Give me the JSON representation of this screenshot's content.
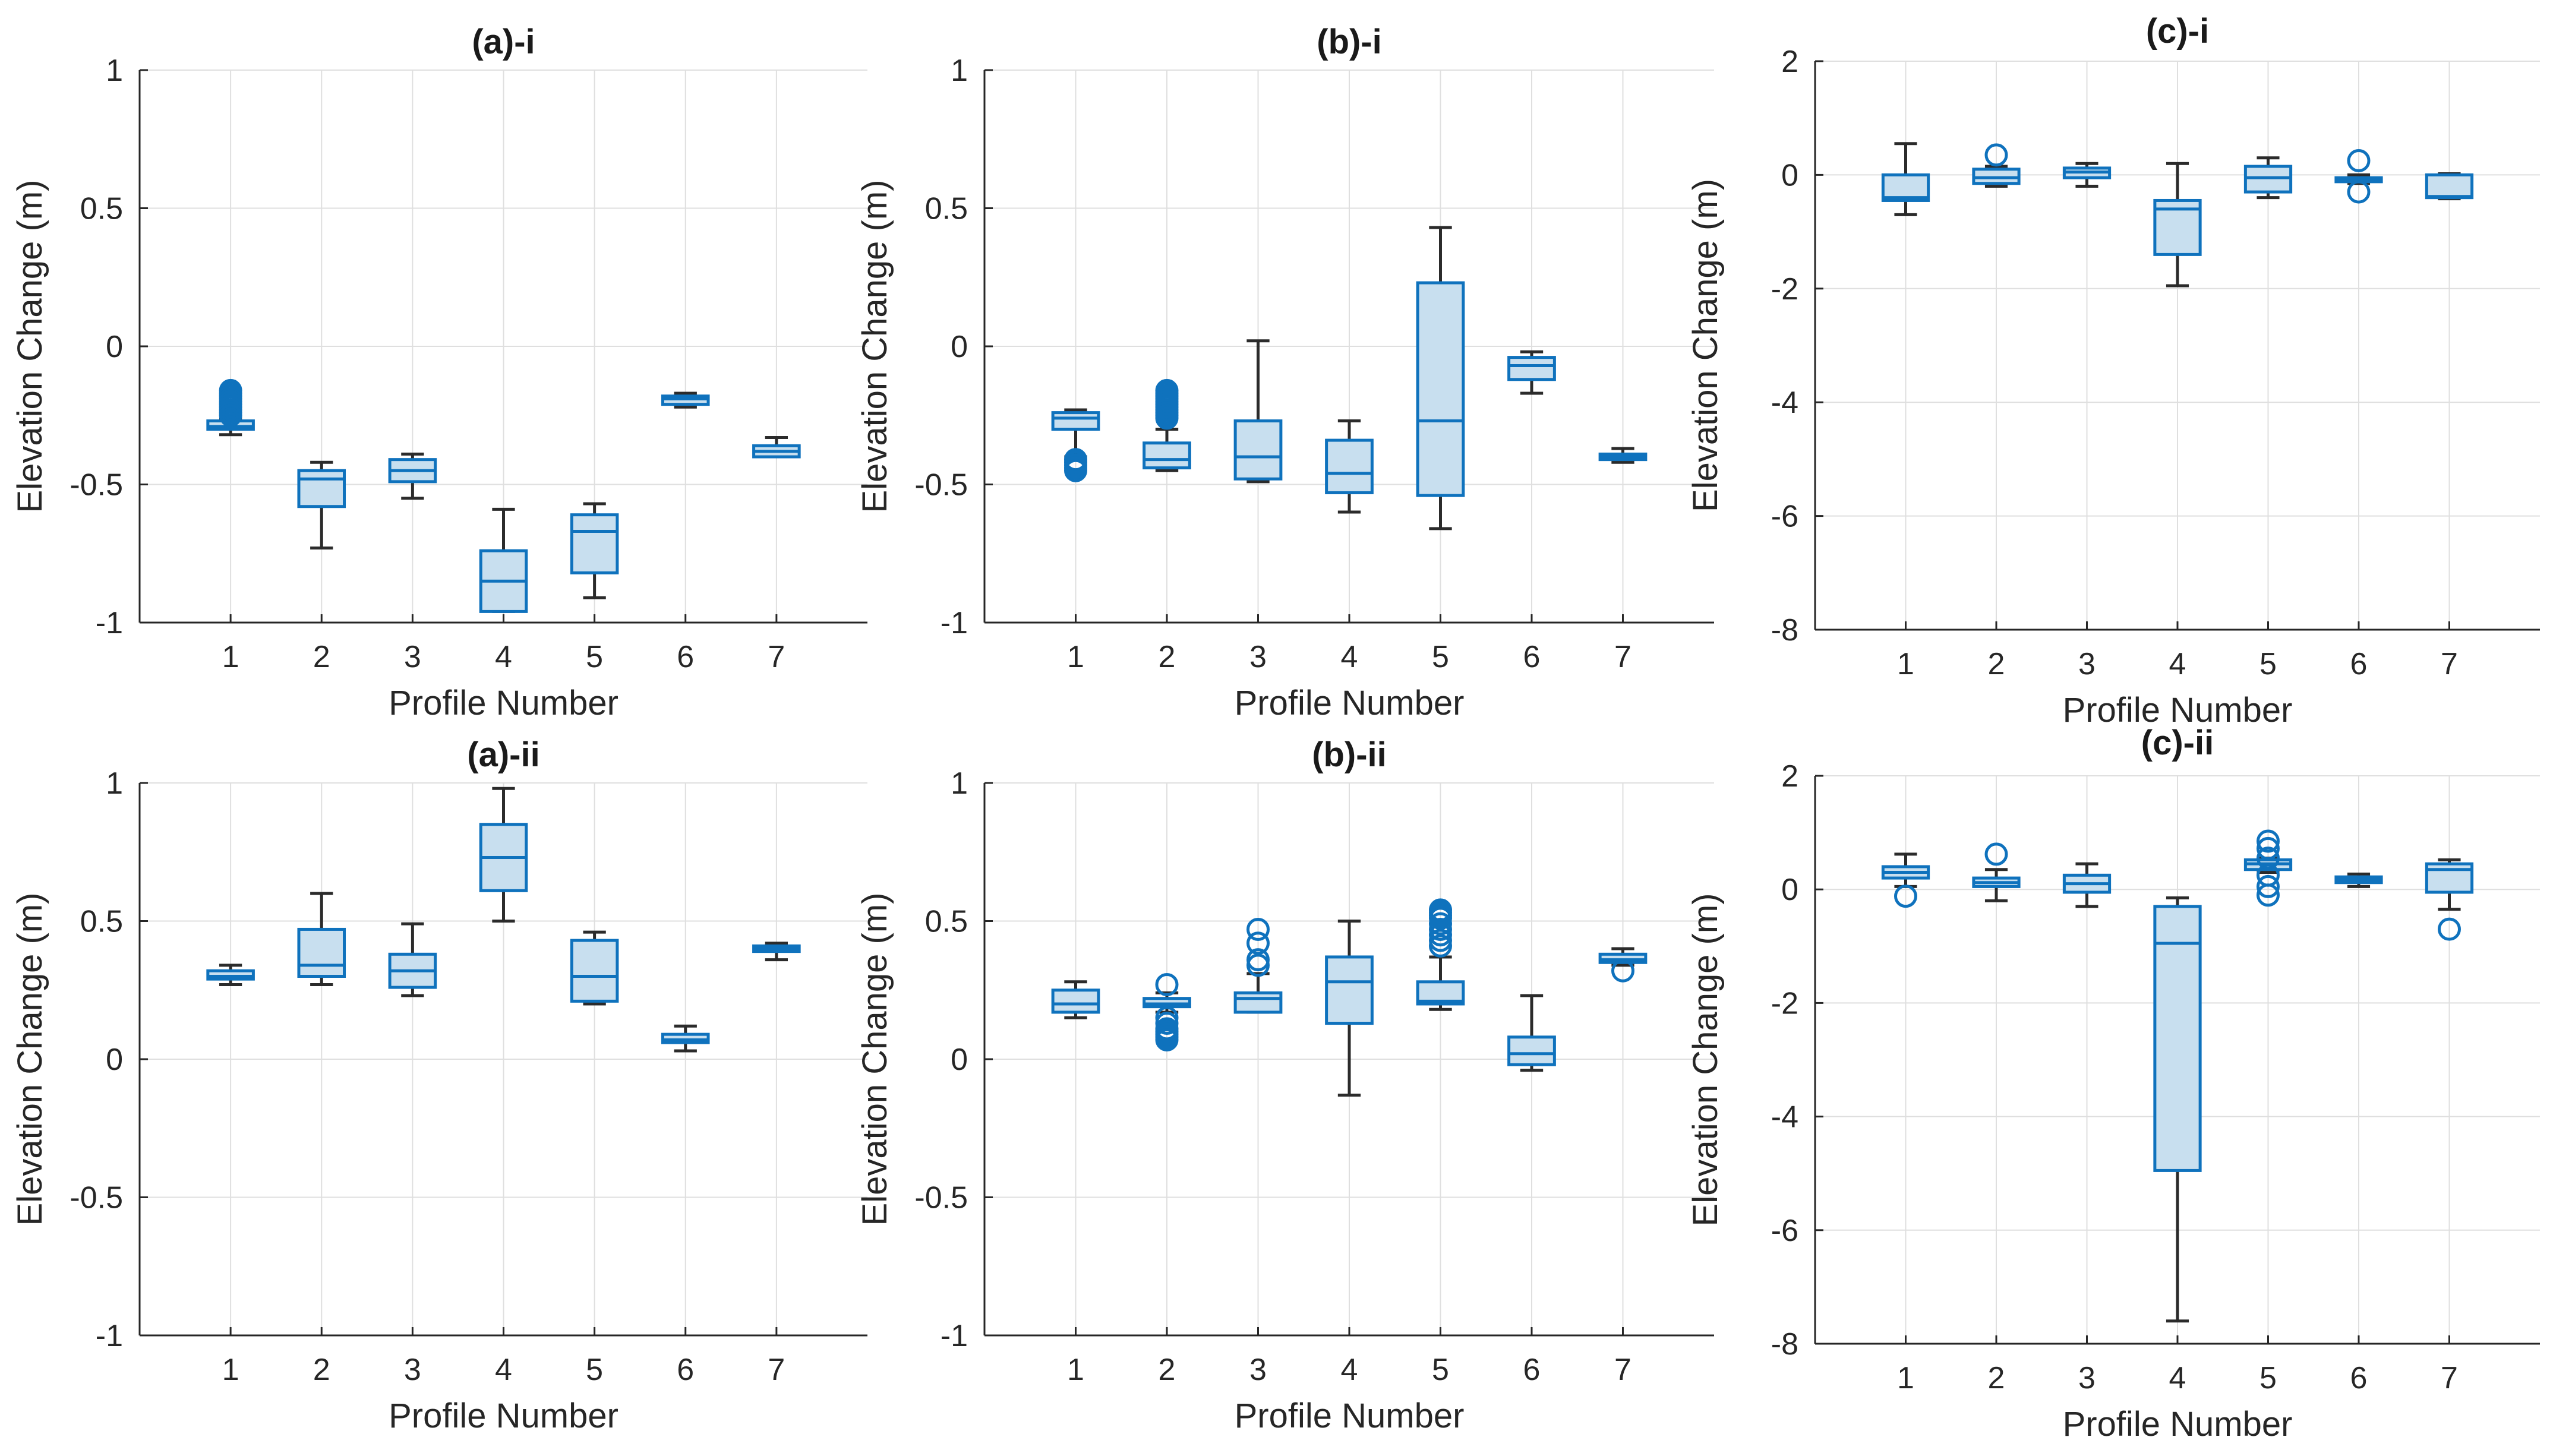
{
  "colors": {
    "box_fill": "#c8dfef",
    "box_edge": "#0f72bd",
    "whisker": "#2b2b2b",
    "grid": "#dfdfdf"
  },
  "chart_data": [
    {
      "type": "box",
      "title": "(a)-i",
      "xlabel": "Profile Number",
      "ylabel": "Elevation Change (m)",
      "ylim": [
        -1,
        1
      ],
      "yticks": [
        -1,
        -0.5,
        0,
        0.5,
        1
      ],
      "ytick_labels": [
        "-1",
        "-0.5",
        "0",
        "0.5",
        "1"
      ],
      "categories": [
        "1",
        "2",
        "3",
        "4",
        "5",
        "6",
        "7"
      ],
      "grid": true,
      "boxes": [
        {
          "category": "1",
          "whisker_low": -0.32,
          "q1": -0.3,
          "median": -0.29,
          "q3": -0.27,
          "whisker_high": -0.26,
          "outliers": [
            -0.16,
            -0.17,
            -0.18,
            -0.19,
            -0.2,
            -0.21,
            -0.22,
            -0.23,
            -0.24,
            -0.25
          ]
        },
        {
          "category": "2",
          "whisker_low": -0.73,
          "q1": -0.58,
          "median": -0.48,
          "q3": -0.45,
          "whisker_high": -0.42,
          "outliers": []
        },
        {
          "category": "3",
          "whisker_low": -0.55,
          "q1": -0.49,
          "median": -0.45,
          "q3": -0.41,
          "whisker_high": -0.39,
          "outliers": []
        },
        {
          "category": "4",
          "whisker_low": -0.96,
          "q1": -0.96,
          "median": -0.85,
          "q3": -0.74,
          "whisker_high": -0.59,
          "outliers": []
        },
        {
          "category": "5",
          "whisker_low": -0.91,
          "q1": -0.82,
          "median": -0.67,
          "q3": -0.61,
          "whisker_high": -0.57,
          "outliers": []
        },
        {
          "category": "6",
          "whisker_low": -0.22,
          "q1": -0.21,
          "median": -0.19,
          "q3": -0.18,
          "whisker_high": -0.17,
          "outliers": []
        },
        {
          "category": "7",
          "whisker_low": -0.4,
          "q1": -0.4,
          "median": -0.38,
          "q3": -0.36,
          "whisker_high": -0.33,
          "outliers": []
        }
      ]
    },
    {
      "type": "box",
      "title": "(b)-i",
      "xlabel": "Profile Number",
      "ylabel": "Elevation Change (m)",
      "ylim": [
        -1,
        1
      ],
      "yticks": [
        -1,
        -0.5,
        0,
        0.5,
        1
      ],
      "ytick_labels": [
        "-1",
        "-0.5",
        "0",
        "0.5",
        "1"
      ],
      "categories": [
        "1",
        "2",
        "3",
        "4",
        "5",
        "6",
        "7"
      ],
      "grid": true,
      "boxes": [
        {
          "category": "1",
          "whisker_low": -0.4,
          "q1": -0.3,
          "median": -0.26,
          "q3": -0.24,
          "whisker_high": -0.23,
          "outliers": [
            -0.41,
            -0.42,
            -0.43,
            -0.44,
            -0.45
          ]
        },
        {
          "category": "2",
          "whisker_low": -0.45,
          "q1": -0.44,
          "median": -0.41,
          "q3": -0.35,
          "whisker_high": -0.3,
          "outliers": [
            -0.16,
            -0.17,
            -0.18,
            -0.19,
            -0.2,
            -0.21,
            -0.22,
            -0.23,
            -0.24,
            -0.25,
            -0.26
          ]
        },
        {
          "category": "3",
          "whisker_low": -0.49,
          "q1": -0.48,
          "median": -0.4,
          "q3": -0.27,
          "whisker_high": 0.02,
          "outliers": []
        },
        {
          "category": "4",
          "whisker_low": -0.6,
          "q1": -0.53,
          "median": -0.46,
          "q3": -0.34,
          "whisker_high": -0.27,
          "outliers": []
        },
        {
          "category": "5",
          "whisker_low": -0.66,
          "q1": -0.54,
          "median": -0.27,
          "q3": 0.23,
          "whisker_high": 0.43,
          "outliers": []
        },
        {
          "category": "6",
          "whisker_low": -0.17,
          "q1": -0.12,
          "median": -0.07,
          "q3": -0.04,
          "whisker_high": -0.02,
          "outliers": []
        },
        {
          "category": "7",
          "whisker_low": -0.42,
          "q1": -0.41,
          "median": -0.4,
          "q3": -0.39,
          "whisker_high": -0.37,
          "outliers": []
        }
      ]
    },
    {
      "type": "box",
      "title": "(c)-i",
      "xlabel": "Profile Number",
      "ylabel": "Elevation Change (m)",
      "ylim": [
        -8,
        2
      ],
      "yticks": [
        -8,
        -6,
        -4,
        -2,
        0,
        2
      ],
      "ytick_labels": [
        "-8",
        "-6",
        "-4",
        "-2",
        "0",
        "2"
      ],
      "categories": [
        "1",
        "2",
        "3",
        "4",
        "5",
        "6",
        "7"
      ],
      "grid": true,
      "boxes": [
        {
          "category": "1",
          "whisker_low": -0.7,
          "q1": -0.45,
          "median": -0.4,
          "q3": 0.0,
          "whisker_high": 0.55,
          "outliers": []
        },
        {
          "category": "2",
          "whisker_low": -0.2,
          "q1": -0.15,
          "median": -0.05,
          "q3": 0.1,
          "whisker_high": 0.15,
          "outliers": [
            0.35
          ]
        },
        {
          "category": "3",
          "whisker_low": -0.2,
          "q1": -0.05,
          "median": 0.05,
          "q3": 0.12,
          "whisker_high": 0.2,
          "outliers": []
        },
        {
          "category": "4",
          "whisker_low": -1.95,
          "q1": -1.4,
          "median": -0.6,
          "q3": -0.45,
          "whisker_high": 0.2,
          "outliers": []
        },
        {
          "category": "5",
          "whisker_low": -0.4,
          "q1": -0.3,
          "median": -0.05,
          "q3": 0.15,
          "whisker_high": 0.3,
          "outliers": []
        },
        {
          "category": "6",
          "whisker_low": -0.15,
          "q1": -0.12,
          "median": -0.08,
          "q3": -0.05,
          "whisker_high": 0.0,
          "outliers": [
            0.25,
            -0.3
          ]
        },
        {
          "category": "7",
          "whisker_low": -0.42,
          "q1": -0.4,
          "median": -0.38,
          "q3": 0.0,
          "whisker_high": 0.02,
          "outliers": []
        }
      ]
    },
    {
      "type": "box",
      "title": "(a)-ii",
      "xlabel": "Profile Number",
      "ylabel": "Elevation Change (m)",
      "ylim": [
        -1,
        1
      ],
      "yticks": [
        -1,
        -0.5,
        0,
        0.5,
        1
      ],
      "ytick_labels": [
        "-1",
        "-0.5",
        "0",
        "0.5",
        "1"
      ],
      "categories": [
        "1",
        "2",
        "3",
        "4",
        "5",
        "6",
        "7"
      ],
      "grid": true,
      "boxes": [
        {
          "category": "1",
          "whisker_low": 0.27,
          "q1": 0.29,
          "median": 0.3,
          "q3": 0.32,
          "whisker_high": 0.34,
          "outliers": []
        },
        {
          "category": "2",
          "whisker_low": 0.27,
          "q1": 0.3,
          "median": 0.34,
          "q3": 0.47,
          "whisker_high": 0.6,
          "outliers": []
        },
        {
          "category": "3",
          "whisker_low": 0.23,
          "q1": 0.26,
          "median": 0.32,
          "q3": 0.38,
          "whisker_high": 0.49,
          "outliers": []
        },
        {
          "category": "4",
          "whisker_low": 0.5,
          "q1": 0.61,
          "median": 0.73,
          "q3": 0.85,
          "whisker_high": 0.98,
          "outliers": []
        },
        {
          "category": "5",
          "whisker_low": 0.2,
          "q1": 0.21,
          "median": 0.3,
          "q3": 0.43,
          "whisker_high": 0.46,
          "outliers": []
        },
        {
          "category": "6",
          "whisker_low": 0.03,
          "q1": 0.06,
          "median": 0.07,
          "q3": 0.09,
          "whisker_high": 0.12,
          "outliers": []
        },
        {
          "category": "7",
          "whisker_low": 0.36,
          "q1": 0.39,
          "median": 0.4,
          "q3": 0.41,
          "whisker_high": 0.42,
          "outliers": []
        }
      ]
    },
    {
      "type": "box",
      "title": "(b)-ii",
      "xlabel": "Profile Number",
      "ylabel": "Elevation Change (m)",
      "ylim": [
        -1,
        1
      ],
      "yticks": [
        -1,
        -0.5,
        0,
        0.5,
        1
      ],
      "ytick_labels": [
        "-1",
        "-0.5",
        "0",
        "0.5",
        "1"
      ],
      "categories": [
        "1",
        "2",
        "3",
        "4",
        "5",
        "6",
        "7"
      ],
      "grid": true,
      "boxes": [
        {
          "category": "1",
          "whisker_low": 0.15,
          "q1": 0.17,
          "median": 0.2,
          "q3": 0.25,
          "whisker_high": 0.28,
          "outliers": []
        },
        {
          "category": "2",
          "whisker_low": 0.17,
          "q1": 0.19,
          "median": 0.2,
          "q3": 0.22,
          "whisker_high": 0.24,
          "outliers": [
            0.27,
            0.15,
            0.13,
            0.11,
            0.1,
            0.09,
            0.08,
            0.07
          ]
        },
        {
          "category": "3",
          "whisker_low": 0.17,
          "q1": 0.17,
          "median": 0.22,
          "q3": 0.24,
          "whisker_high": 0.31,
          "outliers": [
            0.34,
            0.36,
            0.42,
            0.47
          ]
        },
        {
          "category": "4",
          "whisker_low": -0.13,
          "q1": 0.13,
          "median": 0.28,
          "q3": 0.37,
          "whisker_high": 0.5,
          "outliers": []
        },
        {
          "category": "5",
          "whisker_low": 0.18,
          "q1": 0.2,
          "median": 0.21,
          "q3": 0.28,
          "whisker_high": 0.37,
          "outliers": [
            0.41,
            0.43,
            0.45,
            0.47,
            0.49,
            0.51,
            0.52,
            0.53,
            0.54
          ]
        },
        {
          "category": "6",
          "whisker_low": -0.04,
          "q1": -0.02,
          "median": 0.02,
          "q3": 0.08,
          "whisker_high": 0.23,
          "outliers": []
        },
        {
          "category": "7",
          "whisker_low": 0.34,
          "q1": 0.35,
          "median": 0.36,
          "q3": 0.38,
          "whisker_high": 0.4,
          "outliers": [
            0.32
          ]
        }
      ]
    },
    {
      "type": "box",
      "title": "(c)-ii",
      "xlabel": "Profile Number",
      "ylabel": "Elevation Change (m)",
      "ylim": [
        -8,
        2
      ],
      "yticks": [
        -8,
        -6,
        -4,
        -2,
        0,
        2
      ],
      "ytick_labels": [
        "-8",
        "-6",
        "-4",
        "-2",
        "0",
        "2"
      ],
      "categories": [
        "1",
        "2",
        "3",
        "4",
        "5",
        "6",
        "7"
      ],
      "grid": true,
      "boxes": [
        {
          "category": "1",
          "whisker_low": 0.05,
          "q1": 0.2,
          "median": 0.3,
          "q3": 0.4,
          "whisker_high": 0.62,
          "outliers": [
            -0.12
          ]
        },
        {
          "category": "2",
          "whisker_low": -0.2,
          "q1": 0.05,
          "median": 0.12,
          "q3": 0.2,
          "whisker_high": 0.35,
          "outliers": [
            0.62
          ]
        },
        {
          "category": "3",
          "whisker_low": -0.3,
          "q1": -0.05,
          "median": 0.1,
          "q3": 0.25,
          "whisker_high": 0.45,
          "outliers": []
        },
        {
          "category": "4",
          "whisker_low": -7.6,
          "q1": -4.95,
          "median": -0.95,
          "q3": -0.3,
          "whisker_high": -0.15,
          "outliers": []
        },
        {
          "category": "5",
          "whisker_low": 0.3,
          "q1": 0.35,
          "median": 0.45,
          "q3": 0.52,
          "whisker_high": 0.55,
          "outliers": [
            0.85,
            0.72,
            0.55,
            0.25,
            0.05,
            -0.1
          ]
        },
        {
          "category": "6",
          "whisker_low": 0.05,
          "q1": 0.12,
          "median": 0.17,
          "q3": 0.22,
          "whisker_high": 0.27,
          "outliers": []
        },
        {
          "category": "7",
          "whisker_low": -0.35,
          "q1": -0.05,
          "median": 0.35,
          "q3": 0.45,
          "whisker_high": 0.52,
          "outliers": [
            -0.7
          ]
        }
      ]
    }
  ]
}
